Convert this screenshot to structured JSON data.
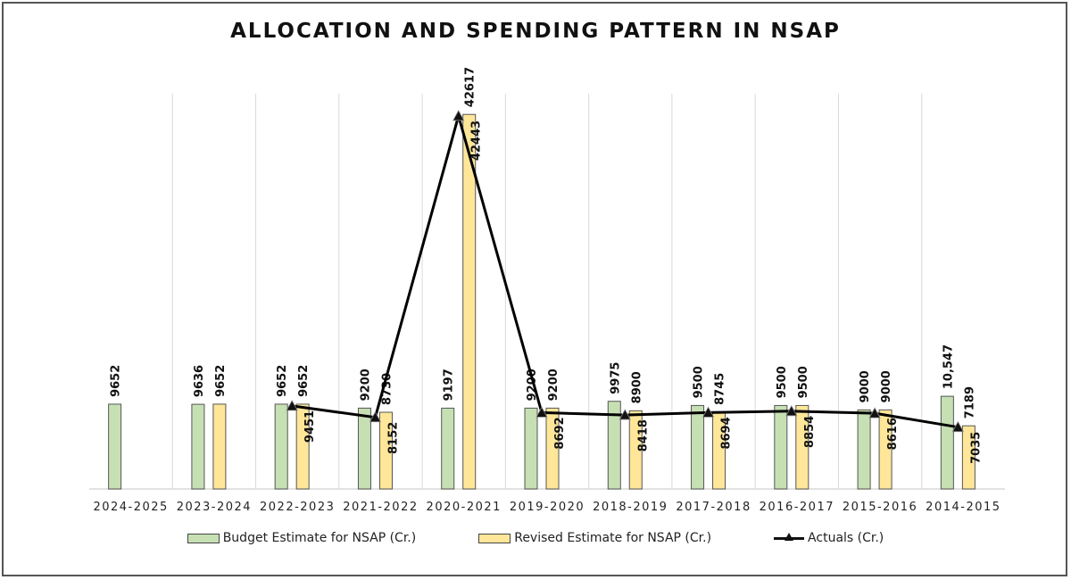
{
  "chart_data": {
    "type": "bar",
    "title": "ALLOCATION AND SPENDING PATTERN IN NSAP",
    "xlabel": "",
    "ylabel": "",
    "ylim": [
      0,
      45000
    ],
    "grid": "vertical category separators",
    "legend_position": "bottom",
    "categories": [
      "2024-2025",
      "2023-2024",
      "2022-2023",
      "2021-2022",
      "2020-2021",
      "2019-2020",
      "2018-2019",
      "2017-2018",
      "2016-2017",
      "2015-2016",
      "2014-2015"
    ],
    "series": [
      {
        "name": "Budget Estimate for NSAP (Cr.)",
        "kind": "bar",
        "color": "#c6e0b4",
        "values": [
          9652,
          9636,
          9652,
          9200,
          9197,
          9200,
          9975,
          9500,
          9500,
          9000,
          10547
        ],
        "labels": [
          "9652",
          "9636",
          "9652",
          "9200",
          "9197",
          "9200",
          "9975",
          "9500",
          "9500",
          "9000",
          "10,547"
        ]
      },
      {
        "name": "Revised Estimate for NSAP (Cr.)",
        "kind": "bar",
        "color": "#ffe699",
        "values": [
          null,
          9652,
          9652,
          8730,
          42617,
          9200,
          8900,
          8745,
          9500,
          9000,
          7189
        ],
        "labels": [
          null,
          "9652",
          "9652",
          "8730",
          "42617",
          "9200",
          "8900",
          "8745",
          "9500",
          "9000",
          "7189"
        ]
      },
      {
        "name": "Actuals (Cr.)",
        "kind": "line",
        "color": "#000000",
        "marker": "triangle",
        "values": [
          null,
          null,
          9451,
          8152,
          42443,
          8692,
          8418,
          8694,
          8854,
          8616,
          7035
        ],
        "labels": [
          null,
          null,
          "9451",
          "8152",
          "42443",
          "8692",
          "8418",
          "8694",
          "8854",
          "8616",
          "7035"
        ]
      }
    ]
  }
}
